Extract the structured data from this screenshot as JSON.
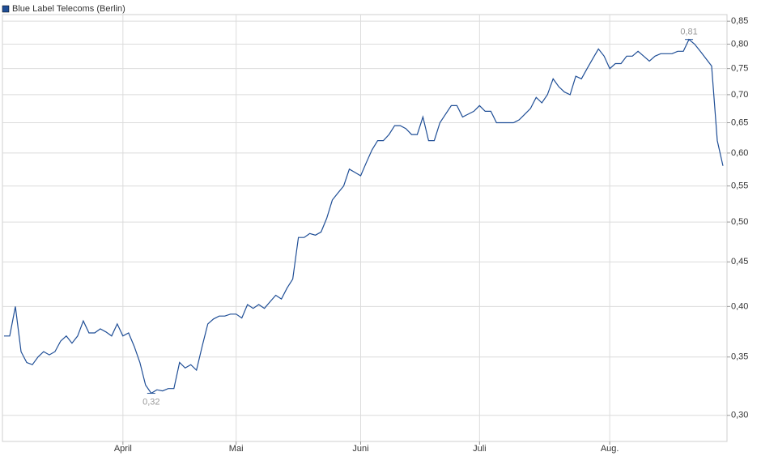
{
  "chart_data": {
    "type": "line",
    "series": [
      {
        "name": "Blue Label Telecoms (Berlin)",
        "color": "#1f4e96",
        "values": [
          0.37,
          0.37,
          0.4,
          0.355,
          0.345,
          0.343,
          0.35,
          0.355,
          0.352,
          0.355,
          0.365,
          0.37,
          0.363,
          0.37,
          0.385,
          0.373,
          0.373,
          0.377,
          0.374,
          0.37,
          0.382,
          0.37,
          0.373,
          0.36,
          0.345,
          0.325,
          0.318,
          0.321,
          0.32,
          0.322,
          0.322,
          0.345,
          0.34,
          0.343,
          0.338,
          0.36,
          0.382,
          0.387,
          0.39,
          0.39,
          0.392,
          0.392,
          0.388,
          0.402,
          0.398,
          0.402,
          0.398,
          0.405,
          0.412,
          0.408,
          0.42,
          0.43,
          0.48,
          0.48,
          0.485,
          0.483,
          0.487,
          0.505,
          0.53,
          0.54,
          0.55,
          0.575,
          0.57,
          0.565,
          0.585,
          0.605,
          0.62,
          0.62,
          0.63,
          0.645,
          0.645,
          0.64,
          0.63,
          0.63,
          0.66,
          0.62,
          0.62,
          0.65,
          0.665,
          0.68,
          0.68,
          0.66,
          0.665,
          0.67,
          0.68,
          0.67,
          0.67,
          0.65,
          0.65,
          0.65,
          0.65,
          0.655,
          0.665,
          0.675,
          0.695,
          0.685,
          0.7,
          0.73,
          0.715,
          0.705,
          0.7,
          0.735,
          0.73,
          0.75,
          0.77,
          0.79,
          0.775,
          0.75,
          0.76,
          0.76,
          0.775,
          0.775,
          0.785,
          0.775,
          0.765,
          0.775,
          0.78,
          0.78,
          0.78,
          0.785,
          0.785,
          0.81,
          0.8,
          0.785,
          0.77,
          0.755,
          0.62,
          0.58
        ]
      }
    ],
    "xlim": [
      0,
      127
    ],
    "xticks": [
      {
        "value": 21,
        "label": "April"
      },
      {
        "value": 41,
        "label": "Mai"
      },
      {
        "value": 63,
        "label": "Juni"
      },
      {
        "value": 84,
        "label": "Juli"
      },
      {
        "value": 107,
        "label": "Aug."
      }
    ],
    "ylim": [
      0.28,
      0.865
    ],
    "yticks": [
      {
        "value": 0.3,
        "label": "0,30"
      },
      {
        "value": 0.35,
        "label": "0,35"
      },
      {
        "value": 0.4,
        "label": "0,40"
      },
      {
        "value": 0.45,
        "label": "0,45"
      },
      {
        "value": 0.5,
        "label": "0,50"
      },
      {
        "value": 0.55,
        "label": "0,55"
      },
      {
        "value": 0.6,
        "label": "0,60"
      },
      {
        "value": 0.65,
        "label": "0,65"
      },
      {
        "value": 0.7,
        "label": "0,70"
      },
      {
        "value": 0.75,
        "label": "0,75"
      },
      {
        "value": 0.8,
        "label": "0,80"
      },
      {
        "value": 0.85,
        "label": "0,85"
      }
    ],
    "log_scale": true,
    "grid": true,
    "annotations": {
      "min": "0,32",
      "max": "0,81"
    }
  }
}
